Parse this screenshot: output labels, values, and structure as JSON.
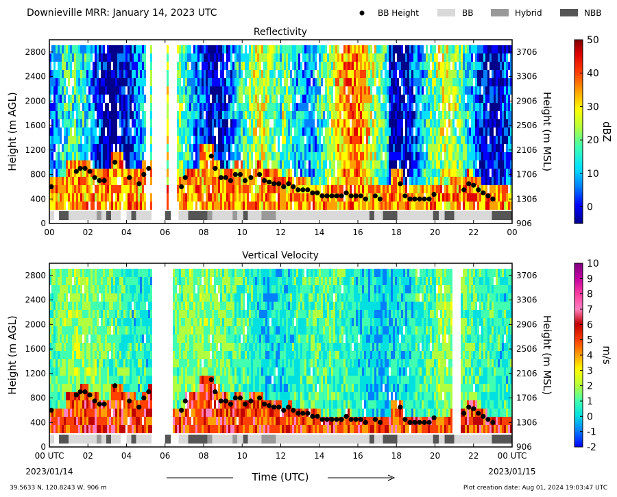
{
  "header": {
    "title": "Downieville MRR:  January 14, 2023 UTC",
    "legend": [
      {
        "name": "BB Height",
        "kind": "marker",
        "color": "#000000"
      },
      {
        "name": "BB",
        "kind": "swatch",
        "color": "#d9d9d9"
      },
      {
        "name": "Hybrid",
        "kind": "swatch",
        "color": "#999999"
      },
      {
        "name": "NBB",
        "kind": "swatch",
        "color": "#555555"
      }
    ]
  },
  "footer": {
    "coords": "39.5633 N, 120.8243 W, 906 m",
    "created": "Plot creation date: Aug 01, 2024 19:03:47 UTC",
    "date_left": "2023/01/14",
    "date_right": "2023/01/15",
    "time_label": "Time (UTC)"
  },
  "chart_data": [
    {
      "type": "heatmap",
      "title": "Reflectivity",
      "ylabel": "Height (m AGL)",
      "ylabel_right": "Height (m MSL)",
      "xlim": [
        0,
        24
      ],
      "ylim": [
        0,
        3000
      ],
      "x_tick_labels": [
        "00",
        "02",
        "04",
        "06",
        "08",
        "10",
        "12",
        "14",
        "16",
        "18",
        "20",
        "22",
        "00"
      ],
      "y_ticks": [
        0,
        400,
        800,
        1200,
        1600,
        2000,
        2400,
        2800
      ],
      "y_ticks_right": [
        "906",
        "1306",
        "1706",
        "2106",
        "2506",
        "2906",
        "3306",
        "3706"
      ],
      "colorbar": {
        "label": "dBZ",
        "min": -5,
        "max": 50,
        "ticks": [
          0,
          10,
          20,
          30,
          40,
          50
        ]
      },
      "data_gaps_hours": [
        [
          5.3,
          6.0
        ],
        [
          6.15,
          6.5
        ]
      ],
      "bb_height": {
        "name": "BB Height",
        "x": [
          0.1,
          1.4,
          1.6,
          1.85,
          2.1,
          2.35,
          2.6,
          2.85,
          3.4,
          4.15,
          4.65,
          4.9,
          5.15,
          6.85,
          7.05,
          8.4,
          8.6,
          8.9,
          9.15,
          9.4,
          9.65,
          9.9,
          10.15,
          10.45,
          10.9,
          11.15,
          11.4,
          11.65,
          11.9,
          12.15,
          12.4,
          12.65,
          12.9,
          13.15,
          13.4,
          13.65,
          13.9,
          14.15,
          14.4,
          14.65,
          14.9,
          15.15,
          15.4,
          15.65,
          15.9,
          16.15,
          16.4,
          16.9,
          17.15,
          18.2,
          18.45,
          18.7,
          18.95,
          19.2,
          19.45,
          19.7,
          19.95,
          21.5,
          21.75,
          22.0,
          22.25,
          22.5,
          22.75,
          23.0
        ],
        "y": [
          600,
          850,
          900,
          900,
          850,
          750,
          700,
          700,
          1000,
          750,
          650,
          800,
          900,
          600,
          750,
          1100,
          900,
          750,
          750,
          700,
          800,
          800,
          700,
          750,
          800,
          700,
          675,
          650,
          650,
          600,
          650,
          600,
          550,
          550,
          550,
          500,
          500,
          450,
          450,
          450,
          450,
          450,
          500,
          450,
          450,
          450,
          400,
          450,
          400,
          650,
          450,
          400,
          400,
          400,
          400,
          400,
          475,
          550,
          650,
          625,
          550,
          500,
          450,
          400
        ]
      },
      "bb_classification": {
        "segments": [
          {
            "x": [
              0.0,
              0.25
            ],
            "class": "BB"
          },
          {
            "x": [
              0.5,
              1.0
            ],
            "class": "NBB"
          },
          {
            "x": [
              1.0,
              2.45
            ],
            "class": "BB"
          },
          {
            "x": [
              2.45,
              2.7
            ],
            "class": "Hybrid"
          },
          {
            "x": [
              2.7,
              2.95
            ],
            "class": "BB"
          },
          {
            "x": [
              2.95,
              3.2
            ],
            "class": "NBB"
          },
          {
            "x": [
              3.2,
              3.7
            ],
            "class": "BB"
          },
          {
            "x": [
              4.0,
              4.25
            ],
            "class": "BB"
          },
          {
            "x": [
              4.25,
              4.5
            ],
            "class": "NBB"
          },
          {
            "x": [
              4.5,
              5.3
            ],
            "class": "BB"
          },
          {
            "x": [
              6.0,
              6.3
            ],
            "class": "NBB"
          },
          {
            "x": [
              6.7,
              7.2
            ],
            "class": "BB"
          },
          {
            "x": [
              7.2,
              8.2
            ],
            "class": "NBB"
          },
          {
            "x": [
              8.2,
              8.45
            ],
            "class": "Hybrid"
          },
          {
            "x": [
              8.45,
              9.5
            ],
            "class": "BB"
          },
          {
            "x": [
              9.5,
              9.75
            ],
            "class": "Hybrid"
          },
          {
            "x": [
              9.75,
              10.05
            ],
            "class": "BB"
          },
          {
            "x": [
              10.05,
              10.3
            ],
            "class": "NBB"
          },
          {
            "x": [
              10.3,
              11.0
            ],
            "class": "BB"
          },
          {
            "x": [
              11.0,
              11.75
            ],
            "class": "Hybrid"
          },
          {
            "x": [
              11.75,
              16.6
            ],
            "class": "BB"
          },
          {
            "x": [
              16.6,
              16.85
            ],
            "class": "NBB"
          },
          {
            "x": [
              16.85,
              17.3
            ],
            "class": "BB"
          },
          {
            "x": [
              17.3,
              18.05
            ],
            "class": "NBB"
          },
          {
            "x": [
              18.05,
              19.9
            ],
            "class": "BB"
          },
          {
            "x": [
              19.9,
              20.2
            ],
            "class": "NBB"
          },
          {
            "x": [
              20.2,
              20.5
            ],
            "class": "BB"
          },
          {
            "x": [
              20.5,
              21.0
            ],
            "class": "NBB"
          },
          {
            "x": [
              21.0,
              21.5
            ],
            "class": "BB"
          },
          {
            "x": [
              21.5,
              22.95
            ],
            "class": "BB"
          },
          {
            "x": [
              22.95,
              24.0
            ],
            "class": "NBB"
          }
        ]
      }
    },
    {
      "type": "heatmap",
      "title": "Vertical Velocity",
      "ylabel": "Height (m AGL)",
      "ylabel_right": "Height (m MSL)",
      "xlim": [
        0,
        24
      ],
      "ylim": [
        0,
        3000
      ],
      "x_tick_labels": [
        "00 UTC",
        "02",
        "04",
        "06",
        "08",
        "10",
        "12",
        "14",
        "16",
        "18",
        "20",
        "22",
        "00 UTC"
      ],
      "y_ticks": [
        0,
        400,
        800,
        1200,
        1600,
        2000,
        2400,
        2800
      ],
      "y_ticks_right": [
        "906",
        "1306",
        "1706",
        "2106",
        "2506",
        "2906",
        "3306",
        "3706"
      ],
      "colorbar": {
        "label": "m/s",
        "min": -2,
        "max": 10,
        "ticks": [
          -2,
          -1,
          0,
          1,
          2,
          3,
          4,
          5,
          6,
          7,
          8,
          9,
          10
        ]
      },
      "data_gaps_hours": [
        [
          5.3,
          6.4
        ],
        [
          20.9,
          21.3
        ]
      ],
      "bb_height": {
        "same_as": "Reflectivity"
      },
      "bb_classification": {
        "same_as": "Reflectivity"
      }
    }
  ]
}
